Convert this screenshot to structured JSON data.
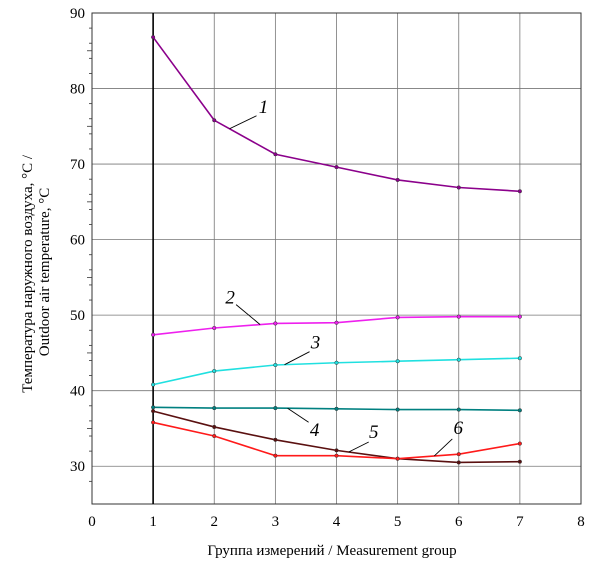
{
  "chart_data": {
    "type": "line",
    "xlabel": "Группа измерений / Measurement group",
    "ylabel": [
      "Температура наружного воздуха, °С /",
      "Outdoor air temperature, °С"
    ],
    "xlim": [
      0,
      8
    ],
    "ylim": [
      25,
      90
    ],
    "xticks": [
      "0",
      "1",
      "2",
      "3",
      "4",
      "5",
      "6",
      "7",
      "8"
    ],
    "yticks": [
      "30",
      "40",
      "50",
      "60",
      "70",
      "80",
      "90"
    ],
    "grid": true,
    "x": [
      1,
      2,
      3,
      4,
      5,
      6,
      7
    ],
    "series": [
      {
        "name": "1",
        "color": "#8b008b",
        "values": [
          86.8,
          75.8,
          71.3,
          69.6,
          67.9,
          66.9,
          66.4
        ]
      },
      {
        "name": "2",
        "color": "#ee20ee",
        "values": [
          47.4,
          48.3,
          48.9,
          49.0,
          49.7,
          49.8,
          49.8
        ]
      },
      {
        "name": "3",
        "color": "#20e0e0",
        "values": [
          40.8,
          42.6,
          43.4,
          43.7,
          43.9,
          44.1,
          44.3
        ]
      },
      {
        "name": "4",
        "color": "#008080",
        "values": [
          37.8,
          37.7,
          37.7,
          37.6,
          37.5,
          37.5,
          37.4
        ]
      },
      {
        "name": "5",
        "color": "#5a1010",
        "values": [
          37.3,
          35.2,
          33.5,
          32.1,
          31.0,
          30.5,
          30.6
        ]
      },
      {
        "name": "6",
        "color": "#ff1a1a",
        "values": [
          35.8,
          34.0,
          31.4,
          31.4,
          31.0,
          31.6,
          33.0
        ]
      }
    ]
  }
}
